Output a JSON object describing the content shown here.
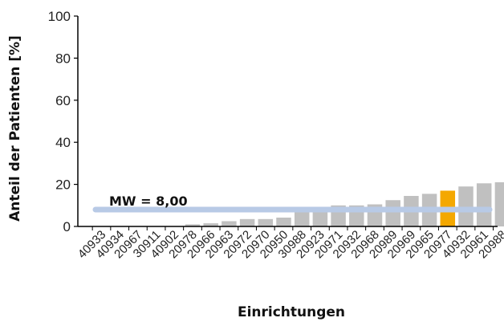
{
  "chart_data": {
    "type": "bar",
    "xlabel": "Einrichtungen",
    "ylabel": "Anteil der Patienten [%]",
    "ylim": [
      0,
      100
    ],
    "yticks": [
      "0",
      "20",
      "40",
      "60",
      "80",
      "100"
    ],
    "categories": [
      "40933",
      "40934",
      "20967",
      "30911",
      "40902",
      "20978",
      "20966",
      "20963",
      "20972",
      "20970",
      "20950",
      "30988",
      "20923",
      "20971",
      "20932",
      "20968",
      "20989",
      "20969",
      "20965",
      "20977",
      "40932",
      "20961",
      "20988"
    ],
    "values": [
      0,
      0,
      0,
      0,
      0,
      1,
      1.5,
      2.5,
      3.5,
      3.5,
      4.2,
      7.5,
      8.5,
      10,
      10,
      10.5,
      12.5,
      14.5,
      15.5,
      17,
      19,
      20.5,
      21
    ],
    "highlight_category": "20977",
    "mean": {
      "label": "MW = 8,00",
      "value": 8.0
    },
    "grid": false,
    "legend": "none",
    "colors": {
      "bar": "#c0c0c0",
      "highlight": "#f4a800",
      "mean_line": "#b8cae6",
      "axis": "#000000"
    }
  }
}
